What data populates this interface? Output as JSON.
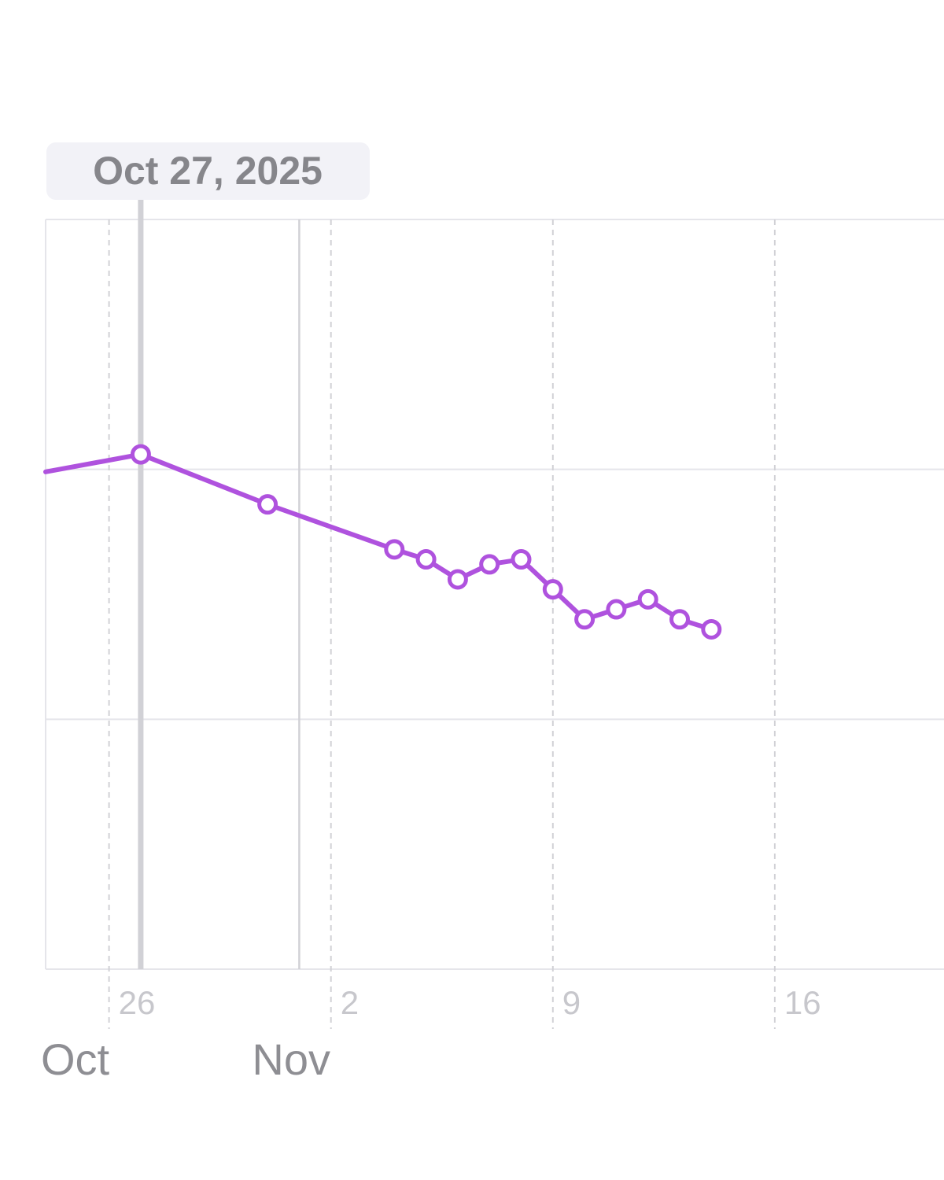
{
  "chart_data": {
    "type": "line",
    "x": [
      "2025-10-24",
      "2025-10-27",
      "2025-10-31",
      "2025-11-04",
      "2025-11-05",
      "2025-11-06",
      "2025-11-07",
      "2025-11-08",
      "2025-11-09",
      "2025-11-10",
      "2025-11-11",
      "2025-11-12",
      "2025-11-13",
      "2025-11-14"
    ],
    "series": [
      {
        "values": [
          1.99,
          2.06,
          1.86,
          1.68,
          1.64,
          1.56,
          1.62,
          1.64,
          1.52,
          1.4,
          1.44,
          1.48,
          1.4,
          1.36
        ],
        "color": "#af52de"
      }
    ],
    "xlim": [
      "2025-10-24",
      "2025-11-20"
    ],
    "ylim": [
      0,
      3
    ],
    "x_ticks": [
      {
        "date": "2025-10-26",
        "label": "26"
      },
      {
        "date": "2025-11-02",
        "label": "2"
      },
      {
        "date": "2025-11-09",
        "label": "9"
      },
      {
        "date": "2025-11-16",
        "label": "16"
      }
    ],
    "month_labels": [
      {
        "date": "2025-10-24",
        "label": "Oct"
      },
      {
        "date": "2025-11-01",
        "label": "Nov"
      }
    ],
    "selected": {
      "date": "2025-10-27",
      "label": "Oct 27, 2025"
    },
    "grid": true,
    "colors": {
      "line": "#af52de",
      "grid": "#e5e5ea",
      "selection": "#d1d1d6",
      "tooltip_bg": "#f2f2f7"
    }
  }
}
